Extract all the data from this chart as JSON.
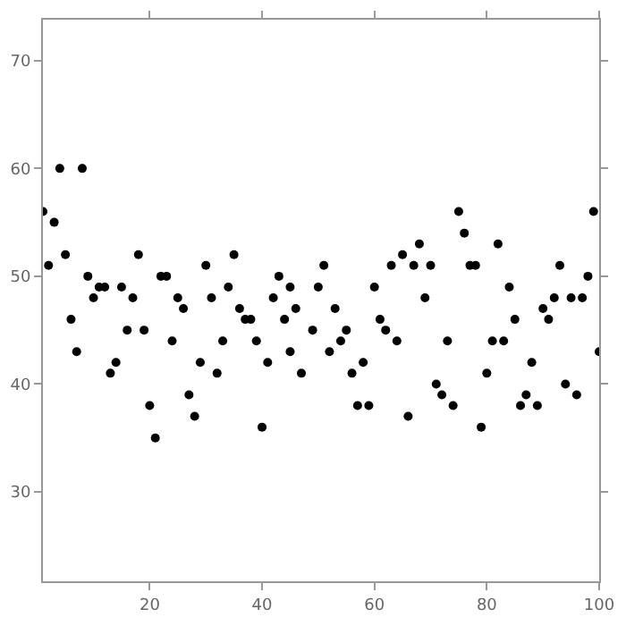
{
  "chart_data": {
    "type": "scatter",
    "x": [
      1,
      2,
      3,
      4,
      5,
      6,
      7,
      8,
      9,
      10,
      11,
      12,
      13,
      14,
      15,
      16,
      17,
      18,
      19,
      20,
      21,
      22,
      23,
      24,
      25,
      26,
      27,
      28,
      29,
      30,
      31,
      32,
      33,
      34,
      35,
      36,
      37,
      38,
      39,
      40,
      41,
      42,
      43,
      44,
      45,
      45,
      46,
      47,
      49,
      50,
      51,
      52,
      53,
      54,
      55,
      56,
      57,
      58,
      59,
      60,
      61,
      62,
      63,
      64,
      65,
      66,
      67,
      68,
      69,
      70,
      71,
      72,
      73,
      74,
      75,
      76,
      77,
      78,
      79,
      80,
      81,
      82,
      83,
      84,
      85,
      86,
      87,
      88,
      89,
      90,
      91,
      92,
      93,
      94,
      95,
      96,
      97,
      98,
      99,
      100
    ],
    "series": [
      {
        "color": "#000000",
        "values": [
          56,
          51,
          55,
          60,
          52,
          46,
          43,
          60,
          50,
          48,
          49,
          49,
          41,
          42,
          49,
          45,
          48,
          52,
          45,
          38,
          35,
          50,
          50,
          44,
          48,
          47,
          39,
          37,
          42,
          51,
          48,
          41,
          44,
          49,
          52,
          47,
          46,
          46,
          44,
          36,
          42,
          48,
          50,
          46,
          49,
          43,
          47,
          41,
          45,
          49,
          51,
          43,
          47,
          44,
          45,
          41,
          38,
          42,
          38,
          49,
          46,
          45,
          51,
          44,
          52,
          37,
          51,
          53,
          48,
          51,
          40,
          39,
          44,
          38,
          56,
          54,
          51,
          51,
          36,
          41,
          44,
          53,
          44,
          49,
          46,
          38,
          39,
          42,
          38,
          47,
          46,
          48,
          51,
          40,
          48,
          39,
          48,
          50,
          56,
          43
        ]
      }
    ],
    "marker": "circle",
    "xlim": [
      1,
      100
    ],
    "ylim": [
      21.7,
      73.8
    ],
    "xticks": [
      20,
      40,
      60,
      80,
      100
    ],
    "yticks": [
      30,
      40,
      50,
      60,
      70
    ]
  }
}
